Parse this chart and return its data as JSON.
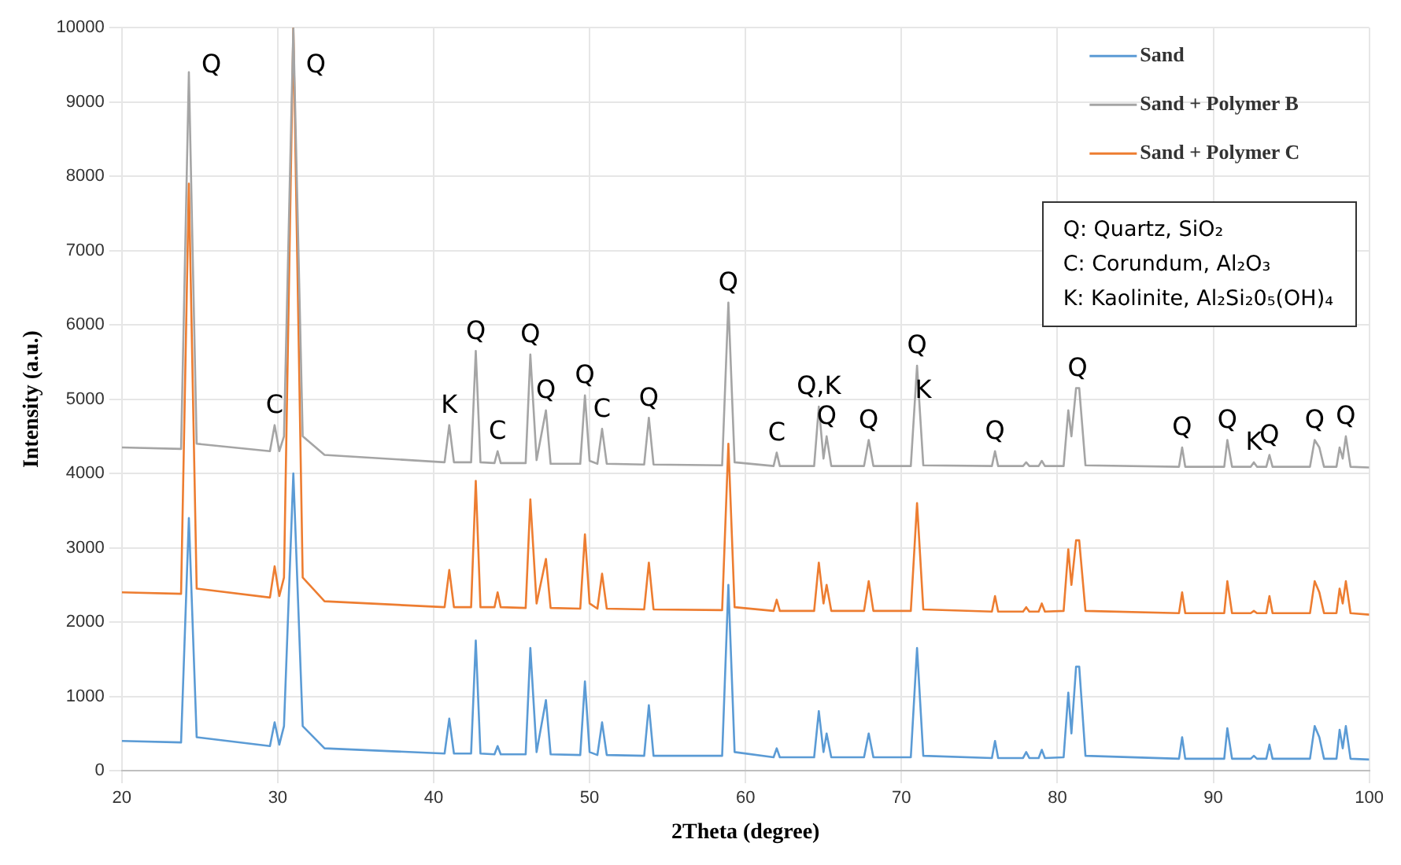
{
  "chart_data": {
    "type": "line",
    "xlabel": "2Theta (degree)",
    "ylabel": "Intensity (a.u.)",
    "x": [
      20,
      23.8,
      24.3,
      24.8,
      29.5,
      29.8,
      30.1,
      30.4,
      31.0,
      31.6,
      33,
      40.7,
      41.0,
      41.3,
      42.4,
      42.7,
      43.0,
      43.9,
      44.1,
      44.3,
      45.9,
      46.2,
      46.6,
      47.2,
      47.5,
      49.4,
      49.7,
      50.0,
      50.5,
      50.8,
      51.1,
      53.5,
      53.8,
      54.1,
      58.5,
      58.9,
      59.3,
      61.8,
      62.0,
      62.2,
      64.4,
      64.7,
      65.0,
      65.2,
      65.5,
      67.6,
      67.9,
      68.2,
      70.6,
      71.0,
      71.4,
      75.8,
      76.0,
      76.2,
      77.8,
      78.0,
      78.2,
      78.8,
      79.0,
      79.2,
      80.4,
      80.7,
      80.9,
      81.2,
      81.4,
      81.8,
      87.8,
      88.0,
      88.2,
      90.7,
      90.9,
      91.2,
      92.4,
      92.6,
      92.8,
      93.4,
      93.6,
      93.8,
      96.2,
      96.5,
      96.8,
      97.1,
      97.9,
      98.1,
      98.3,
      98.5,
      98.8,
      100
    ],
    "series": [
      {
        "name": "Sand",
        "color": "#5b9bd5",
        "values": [
          400,
          380,
          3400,
          450,
          330,
          650,
          350,
          600,
          4000,
          600,
          300,
          230,
          700,
          230,
          230,
          1750,
          230,
          220,
          330,
          220,
          220,
          1650,
          250,
          950,
          220,
          210,
          1200,
          250,
          210,
          650,
          210,
          200,
          880,
          200,
          200,
          2500,
          250,
          180,
          300,
          180,
          180,
          800,
          250,
          500,
          180,
          180,
          500,
          180,
          180,
          1650,
          200,
          170,
          400,
          170,
          170,
          250,
          170,
          170,
          280,
          170,
          180,
          1050,
          500,
          1400,
          1400,
          200,
          160,
          450,
          160,
          160,
          570,
          160,
          160,
          200,
          160,
          160,
          350,
          160,
          160,
          600,
          450,
          160,
          160,
          550,
          300,
          600,
          160,
          150
        ]
      },
      {
        "name": "Sand + Polymer B",
        "color": "#a5a5a5",
        "values": [
          4350,
          4330,
          9400,
          4400,
          4300,
          4650,
          4300,
          4500,
          10000,
          4500,
          4250,
          4150,
          4650,
          4150,
          4150,
          5650,
          4150,
          4140,
          4300,
          4140,
          4140,
          5600,
          4180,
          4850,
          4130,
          4130,
          5050,
          4170,
          4130,
          4600,
          4130,
          4120,
          4750,
          4120,
          4110,
          6300,
          4150,
          4100,
          4280,
          4100,
          4100,
          4900,
          4200,
          4500,
          4100,
          4100,
          4450,
          4100,
          4100,
          5450,
          4110,
          4100,
          4300,
          4100,
          4100,
          4150,
          4100,
          4100,
          4170,
          4100,
          4100,
          4850,
          4500,
          5150,
          5150,
          4110,
          4090,
          4350,
          4090,
          4090,
          4450,
          4090,
          4090,
          4150,
          4090,
          4090,
          4250,
          4090,
          4090,
          4450,
          4350,
          4090,
          4090,
          4350,
          4200,
          4500,
          4090,
          4080
        ]
      },
      {
        "name": "Sand + Polymer C",
        "color": "#ed7d31",
        "values": [
          2400,
          2380,
          7900,
          2450,
          2330,
          2750,
          2350,
          2600,
          10000,
          2600,
          2280,
          2200,
          2700,
          2200,
          2200,
          3900,
          2200,
          2200,
          2400,
          2200,
          2190,
          3650,
          2250,
          2850,
          2190,
          2180,
          3180,
          2250,
          2180,
          2650,
          2180,
          2170,
          2800,
          2170,
          2160,
          4400,
          2200,
          2150,
          2300,
          2150,
          2150,
          2800,
          2250,
          2500,
          2150,
          2150,
          2550,
          2150,
          2150,
          3600,
          2170,
          2140,
          2350,
          2140,
          2140,
          2200,
          2140,
          2140,
          2250,
          2140,
          2150,
          2980,
          2500,
          3100,
          3100,
          2150,
          2120,
          2400,
          2120,
          2120,
          2550,
          2120,
          2120,
          2150,
          2120,
          2120,
          2350,
          2120,
          2120,
          2550,
          2400,
          2120,
          2120,
          2450,
          2250,
          2550,
          2120,
          2100
        ]
      }
    ],
    "xlim": [
      20,
      100
    ],
    "xticks": [
      20,
      30,
      40,
      50,
      60,
      70,
      80,
      90,
      100
    ],
    "ylim": [
      0,
      10000
    ],
    "yticks": [
      0,
      1000,
      2000,
      3000,
      4000,
      5000,
      6000,
      7000,
      8000,
      9000,
      10000
    ],
    "grid": true,
    "legend": "top right",
    "marker": "none",
    "line_style": "solid",
    "annotations": [
      {
        "text": "Q",
        "x": 24.3,
        "y": 9400
      },
      {
        "text": "Q",
        "x": 31.0,
        "y": 10000
      },
      {
        "text": "C",
        "x": 29.8,
        "y": 4650
      },
      {
        "text": "K",
        "x": 41.0,
        "y": 4650
      },
      {
        "text": "Q",
        "x": 42.7,
        "y": 5650
      },
      {
        "text": "C",
        "x": 44.1,
        "y": 4300
      },
      {
        "text": "Q",
        "x": 46.2,
        "y": 5600
      },
      {
        "text": "Q",
        "x": 47.2,
        "y": 4850
      },
      {
        "text": "Q",
        "x": 49.7,
        "y": 5050
      },
      {
        "text": "C",
        "x": 50.8,
        "y": 4600
      },
      {
        "text": "Q",
        "x": 53.8,
        "y": 4750
      },
      {
        "text": "Q",
        "x": 58.9,
        "y": 6300
      },
      {
        "text": "C",
        "x": 62.0,
        "y": 4280
      },
      {
        "text": "Q,K",
        "x": 64.7,
        "y": 4900
      },
      {
        "text": "Q",
        "x": 65.2,
        "y": 4500
      },
      {
        "text": "Q",
        "x": 67.9,
        "y": 4450
      },
      {
        "text": "Q",
        "x": 71.0,
        "y": 5450
      },
      {
        "text": "K",
        "x": 71.4,
        "y": 4850
      },
      {
        "text": "Q",
        "x": 76.0,
        "y": 4300
      },
      {
        "text": "Q",
        "x": 81.3,
        "y": 5150
      },
      {
        "text": "Q",
        "x": 88.0,
        "y": 4350
      },
      {
        "text": "Q",
        "x": 90.9,
        "y": 4450
      },
      {
        "text": "K",
        "x": 92.6,
        "y": 4150
      },
      {
        "text": "Q",
        "x": 93.6,
        "y": 4250
      },
      {
        "text": "Q",
        "x": 96.5,
        "y": 4450
      },
      {
        "text": "Q",
        "x": 98.5,
        "y": 4500
      },
      "Q: Quartz, SiO₂",
      "C: Corundum, Al₂O₃",
      "K: Kaolinite, Al₂Si₂0₅(OH)₄"
    ]
  }
}
